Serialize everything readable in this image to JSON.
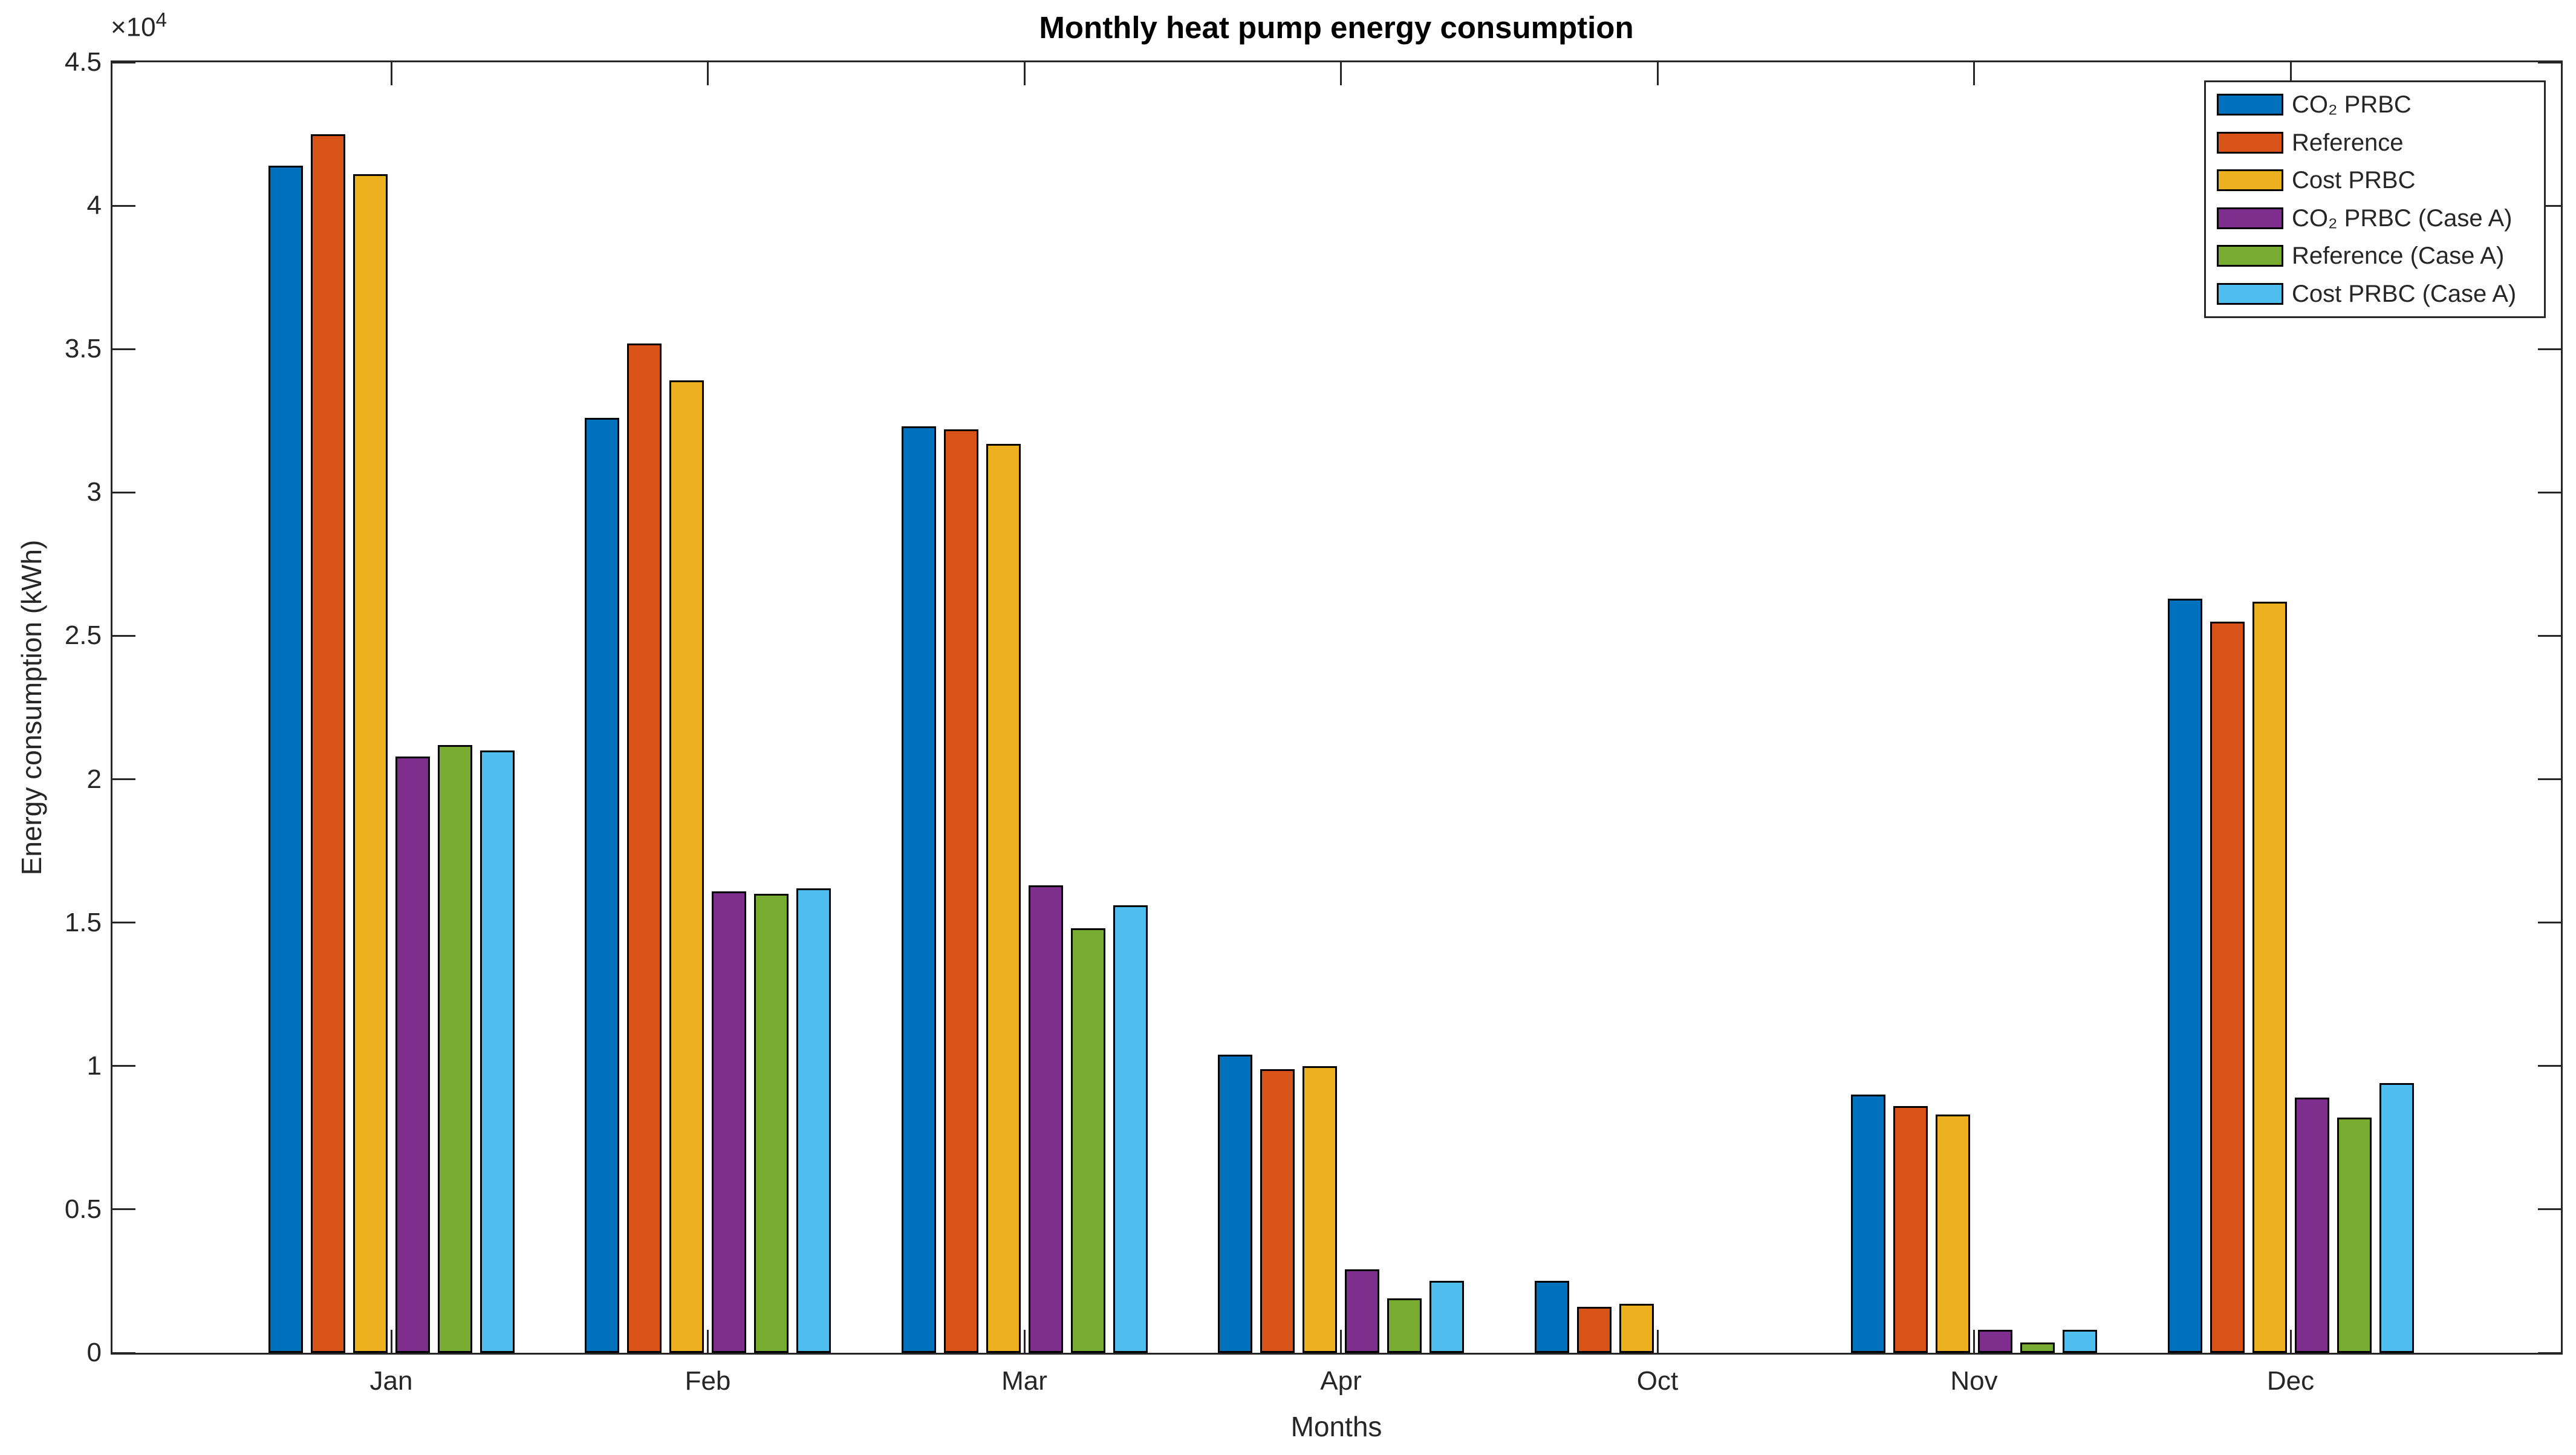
{
  "chart_data": {
    "type": "bar",
    "title": "Monthly heat pump energy consumption",
    "xlabel": "Months",
    "ylabel": "Energy consumption (kWh)",
    "categories": [
      "Jan",
      "Feb",
      "Mar",
      "Apr",
      "Oct",
      "Nov",
      "Dec"
    ],
    "series": [
      {
        "name": "CO₂ PRBC",
        "color": "#0072BD",
        "values": [
          41400,
          32600,
          32300,
          10400,
          2500,
          9000,
          26300
        ]
      },
      {
        "name": "Reference",
        "color": "#D95319",
        "values": [
          42500,
          35200,
          32200,
          9900,
          1600,
          8600,
          25500
        ]
      },
      {
        "name": "Cost PRBC",
        "color": "#EDB120",
        "values": [
          41100,
          33900,
          31700,
          10000,
          1700,
          8300,
          26200
        ]
      },
      {
        "name": "CO₂ PRBC (Case A)",
        "color": "#7E2F8E",
        "values": [
          20800,
          16100,
          16300,
          2900,
          0,
          800,
          8900
        ]
      },
      {
        "name": "Reference (Case A)",
        "color": "#77AC30",
        "values": [
          21200,
          16000,
          14800,
          1900,
          0,
          350,
          8200
        ]
      },
      {
        "name": "Cost PRBC (Case A)",
        "color": "#4DBEEE",
        "values": [
          21000,
          16200,
          15600,
          2500,
          0,
          800,
          9400
        ]
      }
    ],
    "y_axis": {
      "ylim": [
        0,
        45000
      ],
      "ticks": [
        0,
        5000,
        10000,
        15000,
        20000,
        25000,
        30000,
        35000,
        40000,
        45000
      ],
      "tick_labels": [
        "0",
        "0.5",
        "1",
        "1.5",
        "2",
        "2.5",
        "3",
        "3.5",
        "4",
        "4.5"
      ],
      "exponent_base": "×10",
      "exponent": "4"
    },
    "legend": {
      "position": "top-right"
    },
    "grid": false,
    "styles": {
      "bar_edge_color": "#000000",
      "axis_color": "#262626",
      "text_color": "#262626",
      "title_color": "#000000",
      "background": "#ffffff"
    }
  }
}
